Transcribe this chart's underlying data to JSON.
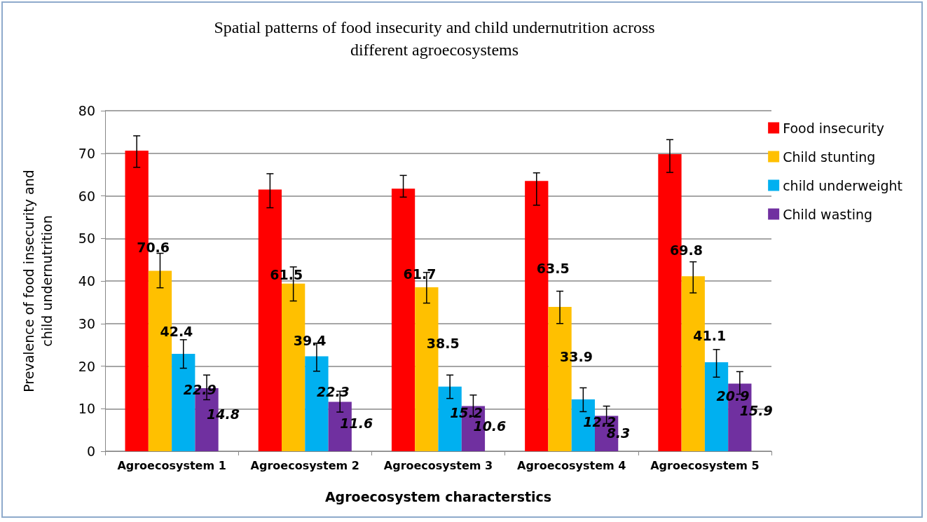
{
  "chart_data": {
    "type": "bar",
    "title": "Spatial patterns of food insecurity and child undernutrition across different agroecosystems",
    "xlabel": "Agroecosystem characterstics",
    "ylabel": "Prevalence of food insecurity and child undernutrition",
    "categories": [
      "Agroecosystem 1",
      "Agroecosystem 2",
      "Agroecosystem 3",
      "Agroecosystem 4",
      "Agroecosystem 5"
    ],
    "series": [
      {
        "name": "Food insecurity",
        "color": "#ff0000",
        "values": [
          70.6,
          61.5,
          61.7,
          63.5,
          69.8
        ],
        "errors": [
          [
            66.7,
            74.1
          ],
          [
            57.2,
            65.2
          ],
          [
            59.7,
            64.8
          ],
          [
            57.8,
            65.4
          ],
          [
            65.5,
            73.2
          ]
        ]
      },
      {
        "name": "Child stunting",
        "color": "#ffc000",
        "values": [
          42.4,
          39.4,
          38.5,
          33.9,
          41.1
        ],
        "errors": [
          [
            38.4,
            46.5
          ],
          [
            35.3,
            43.3
          ],
          [
            34.8,
            42.0
          ],
          [
            30.0,
            37.6
          ],
          [
            37.2,
            44.5
          ]
        ]
      },
      {
        "name": "child underweight",
        "color": "#00b0f0",
        "values": [
          22.9,
          22.3,
          15.2,
          12.2,
          20.9
        ],
        "errors": [
          [
            19.5,
            26.2
          ],
          [
            18.8,
            25.4
          ],
          [
            12.4,
            17.9
          ],
          [
            9.3,
            14.9
          ],
          [
            17.4,
            23.9
          ]
        ]
      },
      {
        "name": "Child wasting",
        "color": "#7030a0",
        "values": [
          14.8,
          11.6,
          10.6,
          8.3,
          15.9
        ],
        "errors": [
          [
            12.1,
            17.9
          ],
          [
            9.2,
            14.1
          ],
          [
            8.2,
            13.2
          ],
          [
            6.5,
            10.6
          ],
          [
            13.4,
            18.7
          ]
        ]
      }
    ],
    "ylim": [
      0,
      80
    ],
    "yticks": [
      0,
      10,
      20,
      30,
      40,
      50,
      60,
      70,
      80
    ],
    "grid": "y",
    "legend": "top right",
    "data_labels": true
  }
}
